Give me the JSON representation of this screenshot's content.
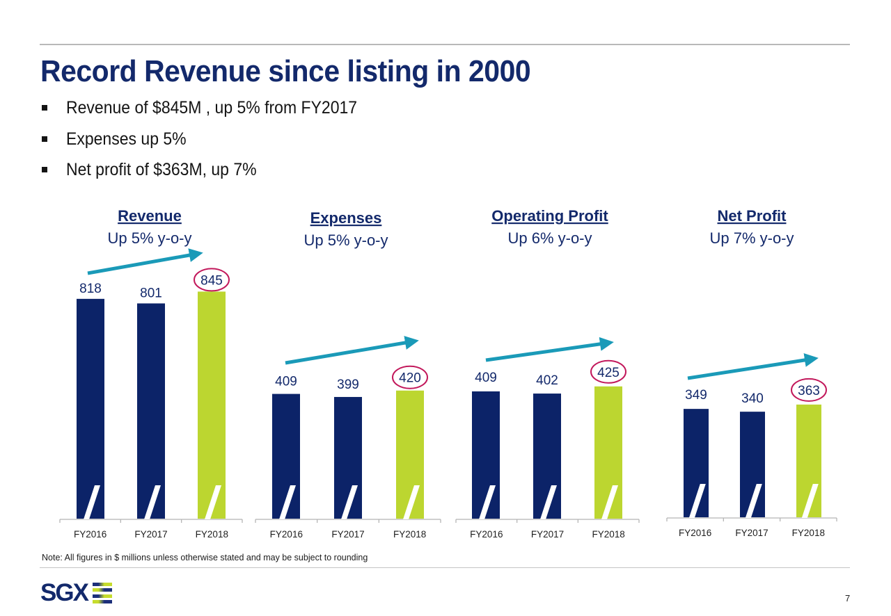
{
  "slide": {
    "title": "Record Revenue since listing in 2000",
    "bullets": [
      "Revenue of $845M , up 5% from FY2017",
      "Expenses up 5%",
      "Net profit of $363M, up 7%"
    ],
    "note": "Note:  All figures in $ millions unless otherwise stated and may be subject to rounding",
    "logo_text": "SGX",
    "page_number": "7"
  },
  "colors": {
    "title": "#13296b",
    "prior_year_bar": "#0c2368",
    "current_year_bar": "#bcd630",
    "trend_arrow": "#1a9ab8",
    "highlight_circle": "#c2185b",
    "axis": "#b5b5b5"
  },
  "chart_data": [
    {
      "type": "bar",
      "title": "Revenue",
      "subtitle": "Up 5% y-o-y",
      "categories": [
        "FY2016",
        "FY2017",
        "FY2018"
      ],
      "values": [
        818,
        801,
        845
      ],
      "highlight": "FY2018",
      "xlabel": "",
      "ylabel": "",
      "axis_break": true,
      "grid": false
    },
    {
      "type": "bar",
      "title": "Expenses",
      "subtitle": "Up 5% y-o-y",
      "categories": [
        "FY2016",
        "FY2017",
        "FY2018"
      ],
      "values": [
        409,
        399,
        420
      ],
      "highlight": "FY2018",
      "xlabel": "",
      "ylabel": "",
      "axis_break": true,
      "grid": false
    },
    {
      "type": "bar",
      "title": "Operating Profit",
      "subtitle": "Up 6% y-o-y",
      "categories": [
        "FY2016",
        "FY2017",
        "FY2018"
      ],
      "values": [
        409,
        402,
        425
      ],
      "highlight": "FY2018",
      "xlabel": "",
      "ylabel": "",
      "axis_break": true,
      "grid": false
    },
    {
      "type": "bar",
      "title": "Net Profit",
      "subtitle": "Up 7% y-o-y",
      "categories": [
        "FY2016",
        "FY2017",
        "FY2018"
      ],
      "values": [
        349,
        340,
        363
      ],
      "highlight": "FY2018",
      "xlabel": "",
      "ylabel": "",
      "axis_break": true,
      "grid": false
    }
  ]
}
